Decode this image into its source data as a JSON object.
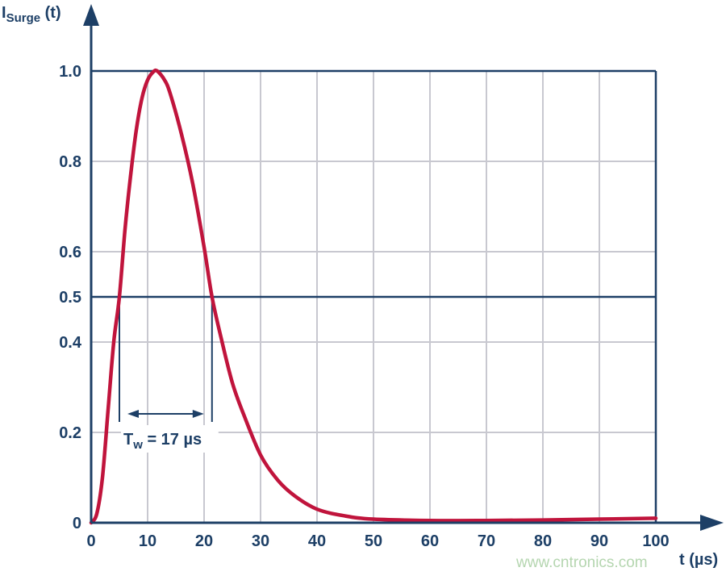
{
  "chart_data": {
    "type": "line",
    "ylabel_main": "I",
    "ylabel_sub": "Surge",
    "ylabel_suffix": " (t)",
    "xlabel": "t (µs)",
    "xlim": [
      0,
      100
    ],
    "ylim": [
      0,
      1.0
    ],
    "xticks": [
      0,
      10,
      20,
      30,
      40,
      50,
      60,
      70,
      80,
      90,
      100
    ],
    "yticks": [
      0,
      0.2,
      0.4,
      0.5,
      0.6,
      0.8,
      1.0
    ],
    "ytick_labels": [
      "0",
      "0.2",
      "0.4",
      "0.5",
      "0.6",
      "0.8",
      "1.0"
    ],
    "emphasized_y": [
      0.5,
      1.0
    ],
    "grid": true,
    "series": [
      {
        "color": "#c0143c",
        "x": [
          0,
          1,
          2,
          3,
          4,
          5,
          6,
          7,
          8,
          9,
          10,
          11,
          11.7,
          13,
          14,
          16,
          18,
          20,
          21.4,
          23,
          25,
          27,
          30,
          33,
          36,
          40,
          45,
          50,
          60,
          70,
          80,
          90,
          100
        ],
        "y": [
          0,
          0.02,
          0.1,
          0.25,
          0.4,
          0.5,
          0.65,
          0.77,
          0.87,
          0.94,
          0.98,
          0.998,
          1.0,
          0.98,
          0.95,
          0.86,
          0.75,
          0.61,
          0.5,
          0.41,
          0.31,
          0.24,
          0.15,
          0.095,
          0.06,
          0.03,
          0.015,
          0.008,
          0.005,
          0.005,
          0.006,
          0.008,
          0.01
        ]
      }
    ],
    "annotation": {
      "label_main": "T",
      "label_sub": "w",
      "label_suffix": " = 17 µs",
      "x_start": 5,
      "x_end": 21.4,
      "y_level": 0.5
    },
    "axis_color": "#1d3f66",
    "grid_color": "#c8c8d0"
  },
  "watermark": "www.cntronics.com"
}
